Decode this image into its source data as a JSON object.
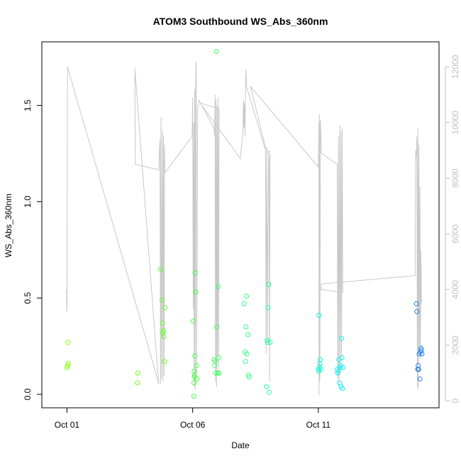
{
  "chart_data": {
    "type": "scatter",
    "title": "ATOM3 Southbound WS_Abs_360nm",
    "xlabel": "Date",
    "ylabel": "WS_Abs_360nm",
    "x_unit": "days in October",
    "xlim": [
      0.0,
      15.8
    ],
    "ylim": [
      -0.07,
      1.83
    ],
    "y2lim": [
      -250,
      12900
    ],
    "grid": false,
    "legend": "none",
    "x_ticks": [
      {
        "value": 1,
        "label": "Oct 01"
      },
      {
        "value": 6,
        "label": "Oct 06"
      },
      {
        "value": 11,
        "label": "Oct 11"
      }
    ],
    "y_ticks": [
      {
        "value": 0,
        "label": "0.0"
      },
      {
        "value": 0.5,
        "label": "0.5"
      },
      {
        "value": 1.0,
        "label": "1.0"
      },
      {
        "value": 1.5,
        "label": "1.5"
      }
    ],
    "y2_ticks": [
      {
        "value": 0,
        "label": "0"
      },
      {
        "value": 2000,
        "label": "2000"
      },
      {
        "value": 4000,
        "label": "4000"
      },
      {
        "value": 6000,
        "label": "6000"
      },
      {
        "value": 8000,
        "label": "8000"
      },
      {
        "value": 10000,
        "label": "10000"
      },
      {
        "value": 12000,
        "label": "12000"
      }
    ],
    "line_color": "#c8c8c8",
    "points": [
      {
        "x": 1.0,
        "y": 0.14,
        "color": "#80ff00"
      },
      {
        "x": 1.03,
        "y": 0.15,
        "color": "#80ff00"
      },
      {
        "x": 1.04,
        "y": 0.27,
        "color": "#80ff00"
      },
      {
        "x": 1.05,
        "y": 0.16,
        "color": "#80ff00"
      },
      {
        "x": 3.8,
        "y": 0.06,
        "color": "#70ff10"
      },
      {
        "x": 3.82,
        "y": 0.11,
        "color": "#70ff10"
      },
      {
        "x": 4.72,
        "y": 0.65,
        "color": "#60ff20"
      },
      {
        "x": 4.78,
        "y": 0.49,
        "color": "#60ff20"
      },
      {
        "x": 4.8,
        "y": 0.37,
        "color": "#60ff20"
      },
      {
        "x": 4.82,
        "y": 0.32,
        "color": "#60ff20"
      },
      {
        "x": 4.84,
        "y": 0.33,
        "color": "#60ff20"
      },
      {
        "x": 4.86,
        "y": 0.3,
        "color": "#60ff20"
      },
      {
        "x": 4.88,
        "y": 0.17,
        "color": "#60ff20"
      },
      {
        "x": 4.9,
        "y": 0.45,
        "color": "#60ff20"
      },
      {
        "x": 6.02,
        "y": 0.38,
        "color": "#40ff40"
      },
      {
        "x": 6.05,
        "y": 0.06,
        "color": "#40ff40"
      },
      {
        "x": 6.06,
        "y": 0.12,
        "color": "#40ff40"
      },
      {
        "x": 6.07,
        "y": 0.09,
        "color": "#40ff40"
      },
      {
        "x": 6.08,
        "y": 0.1,
        "color": "#40ff40"
      },
      {
        "x": 6.09,
        "y": 0.2,
        "color": "#40ff40"
      },
      {
        "x": 6.1,
        "y": 0.63,
        "color": "#40ff40"
      },
      {
        "x": 6.12,
        "y": 0.53,
        "color": "#40ff40"
      },
      {
        "x": 6.15,
        "y": 0.15,
        "color": "#40ff40"
      },
      {
        "x": 6.17,
        "y": 0.08,
        "color": "#40ff40"
      },
      {
        "x": 6.05,
        "y": -0.01,
        "color": "#40ff40"
      },
      {
        "x": 6.85,
        "y": 0.18,
        "color": "#40ff60"
      },
      {
        "x": 6.88,
        "y": 0.15,
        "color": "#40ff60"
      },
      {
        "x": 6.9,
        "y": 0.17,
        "color": "#40ff60"
      },
      {
        "x": 6.92,
        "y": 0.11,
        "color": "#40ff60"
      },
      {
        "x": 6.94,
        "y": 1.78,
        "color": "#40ff60"
      },
      {
        "x": 6.96,
        "y": 0.35,
        "color": "#40ff60"
      },
      {
        "x": 7.0,
        "y": 0.11,
        "color": "#40ff60"
      },
      {
        "x": 7.02,
        "y": 0.56,
        "color": "#40ff60"
      },
      {
        "x": 7.04,
        "y": 0.19,
        "color": "#40ff60"
      },
      {
        "x": 7.05,
        "y": 0.11,
        "color": "#40ff60"
      },
      {
        "x": 8.05,
        "y": 0.47,
        "color": "#30ff80"
      },
      {
        "x": 8.08,
        "y": 0.22,
        "color": "#30ff80"
      },
      {
        "x": 8.1,
        "y": 0.17,
        "color": "#30ff80"
      },
      {
        "x": 8.12,
        "y": 0.35,
        "color": "#30ff80"
      },
      {
        "x": 8.14,
        "y": 0.51,
        "color": "#30ff80"
      },
      {
        "x": 8.16,
        "y": 0.21,
        "color": "#30ff80"
      },
      {
        "x": 8.2,
        "y": 0.31,
        "color": "#30ff80"
      },
      {
        "x": 8.22,
        "y": 0.1,
        "color": "#30ff80"
      },
      {
        "x": 8.25,
        "y": 0.09,
        "color": "#30ff80"
      },
      {
        "x": 8.94,
        "y": 0.04,
        "color": "#20ffa0"
      },
      {
        "x": 8.96,
        "y": 0.28,
        "color": "#20ffa0"
      },
      {
        "x": 8.98,
        "y": 0.27,
        "color": "#20ffa0"
      },
      {
        "x": 9.0,
        "y": 0.45,
        "color": "#20ffa0"
      },
      {
        "x": 9.02,
        "y": 0.57,
        "color": "#20ffa0"
      },
      {
        "x": 9.04,
        "y": 0.01,
        "color": "#20ffa0"
      },
      {
        "x": 9.08,
        "y": 0.27,
        "color": "#20ffa0"
      },
      {
        "x": 11.0,
        "y": 0.13,
        "color": "#10f8d8"
      },
      {
        "x": 11.02,
        "y": 0.12,
        "color": "#10f8d8"
      },
      {
        "x": 11.03,
        "y": 0.41,
        "color": "#10f8d8"
      },
      {
        "x": 11.04,
        "y": 0.14,
        "color": "#10f8d8"
      },
      {
        "x": 11.06,
        "y": 0.16,
        "color": "#10f8d8"
      },
      {
        "x": 11.08,
        "y": 0.18,
        "color": "#10f8d8"
      },
      {
        "x": 11.1,
        "y": 0.13,
        "color": "#10f8d8"
      },
      {
        "x": 11.75,
        "y": 0.13,
        "color": "#10f0f0"
      },
      {
        "x": 11.77,
        "y": 0.11,
        "color": "#10f0f0"
      },
      {
        "x": 11.79,
        "y": 0.12,
        "color": "#10f0f0"
      },
      {
        "x": 11.82,
        "y": 0.18,
        "color": "#10f0f0"
      },
      {
        "x": 11.84,
        "y": 0.06,
        "color": "#10f0f0"
      },
      {
        "x": 11.86,
        "y": 0.14,
        "color": "#10f0f0"
      },
      {
        "x": 11.88,
        "y": 0.15,
        "color": "#10f0f0"
      },
      {
        "x": 11.9,
        "y": 0.04,
        "color": "#10f0f0"
      },
      {
        "x": 11.92,
        "y": 0.29,
        "color": "#10f0f0"
      },
      {
        "x": 11.94,
        "y": 0.19,
        "color": "#10f0f0"
      },
      {
        "x": 11.96,
        "y": 0.03,
        "color": "#10f0f0"
      },
      {
        "x": 11.98,
        "y": 0.14,
        "color": "#10f0f0"
      },
      {
        "x": 14.9,
        "y": 0.47,
        "color": "#2080e8"
      },
      {
        "x": 14.92,
        "y": 0.43,
        "color": "#2080e8"
      },
      {
        "x": 14.95,
        "y": 0.13,
        "color": "#2080e8"
      },
      {
        "x": 14.97,
        "y": 0.15,
        "color": "#2080e8"
      },
      {
        "x": 14.99,
        "y": 0.13,
        "color": "#2080e8"
      },
      {
        "x": 15.01,
        "y": 0.21,
        "color": "#2080e8"
      },
      {
        "x": 15.04,
        "y": 0.08,
        "color": "#2080e8"
      },
      {
        "x": 15.06,
        "y": 0.22,
        "color": "#2080e8"
      },
      {
        "x": 15.08,
        "y": 0.24,
        "color": "#2080e8"
      },
      {
        "x": 15.1,
        "y": 0.23,
        "color": "#2080e8"
      },
      {
        "x": 15.12,
        "y": 0.21,
        "color": "#2080e8"
      }
    ],
    "altitude_line": [
      [
        0.98,
        4000
      ],
      [
        0.99,
        3200
      ],
      [
        1.0,
        3400
      ],
      [
        1.02,
        12000
      ],
      [
        4.6,
        800
      ],
      [
        4.65,
        600
      ],
      [
        3.7,
        11950
      ],
      [
        3.72,
        8500
      ],
      [
        4.65,
        8300
      ],
      [
        4.7,
        9400
      ],
      [
        4.72,
        600
      ],
      [
        4.74,
        10200
      ],
      [
        4.76,
        800
      ],
      [
        4.8,
        9700
      ],
      [
        4.82,
        700
      ],
      [
        4.84,
        9500
      ],
      [
        4.86,
        900
      ],
      [
        4.88,
        9200
      ],
      [
        4.9,
        8200
      ],
      [
        5.98,
        9500
      ],
      [
        6.0,
        10900
      ],
      [
        6.02,
        3300
      ],
      [
        6.04,
        10000
      ],
      [
        6.06,
        500
      ],
      [
        6.08,
        11200
      ],
      [
        6.1,
        400
      ],
      [
        6.12,
        11500
      ],
      [
        6.14,
        12200
      ],
      [
        6.16,
        1000
      ],
      [
        6.2,
        10500
      ],
      [
        6.25,
        10800
      ],
      [
        6.85,
        9800
      ],
      [
        6.87,
        9500
      ],
      [
        6.89,
        11000
      ],
      [
        6.91,
        700
      ],
      [
        6.93,
        10800
      ],
      [
        6.95,
        500
      ],
      [
        6.97,
        10600
      ],
      [
        6.99,
        1600
      ],
      [
        7.01,
        10900
      ],
      [
        7.03,
        900
      ],
      [
        7.05,
        10500
      ],
      [
        6.3,
        10700
      ],
      [
        7.9,
        8700
      ],
      [
        8.0,
        9700
      ],
      [
        8.02,
        10800
      ],
      [
        8.04,
        9800
      ],
      [
        8.06,
        10700
      ],
      [
        8.08,
        9500
      ],
      [
        8.1,
        11100
      ],
      [
        8.12,
        11900
      ],
      [
        8.14,
        11300
      ],
      [
        8.9,
        9000
      ],
      [
        8.92,
        1700
      ],
      [
        8.95,
        9100
      ],
      [
        8.98,
        2100
      ],
      [
        9.0,
        6200
      ],
      [
        9.02,
        8600
      ],
      [
        9.04,
        9000
      ],
      [
        9.06,
        700
      ],
      [
        9.08,
        8800
      ],
      [
        8.9,
        9100
      ],
      [
        8.3,
        11300
      ],
      [
        11.0,
        8400
      ],
      [
        11.02,
        10000
      ],
      [
        11.03,
        200
      ],
      [
        11.04,
        10300
      ],
      [
        11.06,
        700
      ],
      [
        11.08,
        10100
      ],
      [
        11.1,
        9700
      ],
      [
        11.12,
        8900
      ],
      [
        11.75,
        8500
      ],
      [
        11.77,
        800
      ],
      [
        11.8,
        9500
      ],
      [
        11.82,
        500
      ],
      [
        11.85,
        9900
      ],
      [
        11.87,
        1000
      ],
      [
        11.9,
        9700
      ],
      [
        11.92,
        1600
      ],
      [
        11.95,
        9800
      ],
      [
        11.97,
        3900
      ],
      [
        11.1,
        4000
      ],
      [
        11.12,
        4200
      ],
      [
        14.85,
        4500
      ],
      [
        14.87,
        9000
      ],
      [
        14.9,
        8800
      ],
      [
        14.92,
        9500
      ],
      [
        14.94,
        500
      ],
      [
        14.96,
        9800
      ],
      [
        14.98,
        400
      ],
      [
        15.0,
        9200
      ],
      [
        15.02,
        2000
      ],
      [
        15.04,
        7700
      ],
      [
        15.06,
        1500
      ],
      [
        15.08,
        5400
      ],
      [
        15.1,
        3500
      ]
    ]
  }
}
